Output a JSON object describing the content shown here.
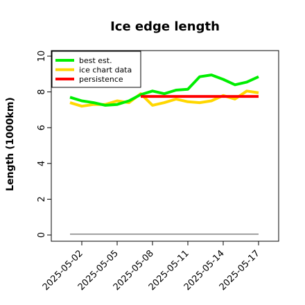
{
  "chart_data": {
    "type": "line",
    "title": "Ice edge length",
    "ylabel": "Length (1000km)",
    "xlabel": "",
    "ylim": [
      0,
      10
    ],
    "y_ticks": [
      0,
      2,
      4,
      6,
      8,
      10
    ],
    "x": [
      "2025-05-01",
      "2025-05-02",
      "2025-05-03",
      "2025-05-04",
      "2025-05-05",
      "2025-05-06",
      "2025-05-07",
      "2025-05-08",
      "2025-05-09",
      "2025-05-10",
      "2025-05-11",
      "2025-05-12",
      "2025-05-13",
      "2025-05-14",
      "2025-05-15",
      "2025-05-16",
      "2025-05-17"
    ],
    "x_ticks": [
      "2025-05-02",
      "2025-05-05",
      "2025-05-08",
      "2025-05-11",
      "2025-05-14",
      "2025-05-17"
    ],
    "legend_position": "top-left",
    "grid": false,
    "series": [
      {
        "name": "best est.",
        "color": "#00ee00",
        "x": [
          "2025-05-01",
          "2025-05-02",
          "2025-05-03",
          "2025-05-04",
          "2025-05-05",
          "2025-05-06",
          "2025-05-07",
          "2025-05-08",
          "2025-05-09",
          "2025-05-10",
          "2025-05-11",
          "2025-05-12",
          "2025-05-13",
          "2025-05-14",
          "2025-05-15",
          "2025-05-16",
          "2025-05-17"
        ],
        "values": [
          7.7,
          7.5,
          7.4,
          7.25,
          7.3,
          7.5,
          7.85,
          8.05,
          7.9,
          8.1,
          8.15,
          8.85,
          8.95,
          8.7,
          8.4,
          8.55,
          8.85
        ]
      },
      {
        "name": "ice chart data",
        "color": "#ffd700",
        "x": [
          "2025-05-01",
          "2025-05-02",
          "2025-05-03",
          "2025-05-04",
          "2025-05-05",
          "2025-05-06",
          "2025-05-07",
          "2025-05-08",
          "2025-05-09",
          "2025-05-10",
          "2025-05-11",
          "2025-05-12",
          "2025-05-13",
          "2025-05-14",
          "2025-05-15",
          "2025-05-16",
          "2025-05-17"
        ],
        "values": [
          7.4,
          7.2,
          7.3,
          7.3,
          7.5,
          7.4,
          7.9,
          7.25,
          7.4,
          7.6,
          7.45,
          7.4,
          7.5,
          7.8,
          7.6,
          8.05,
          7.95
        ]
      },
      {
        "name": "persistence",
        "color": "#ff0000",
        "x": [
          "2025-05-07",
          "2025-05-17"
        ],
        "values": [
          7.75,
          7.75
        ]
      },
      {
        "color": "#808080",
        "x": [
          "2025-05-01",
          "2025-05-17"
        ],
        "values": [
          0.05,
          0.05
        ]
      }
    ]
  }
}
